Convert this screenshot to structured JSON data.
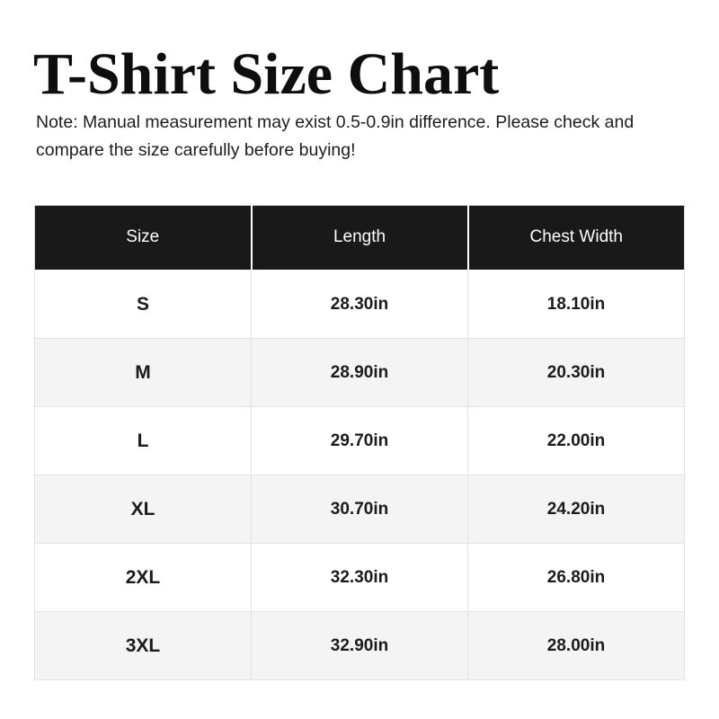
{
  "header": {
    "title": "T-Shirt Size Chart",
    "note": "Note: Manual measurement may exist 0.5-0.9in difference. Please check and compare the size carefully before buying!"
  },
  "table": {
    "columns": [
      "Size",
      "Length",
      "Chest Width"
    ],
    "rows": [
      {
        "size": "S",
        "length": "28.30in",
        "chest_width": "18.10in"
      },
      {
        "size": "M",
        "length": "28.90in",
        "chest_width": "20.30in"
      },
      {
        "size": "L",
        "length": "29.70in",
        "chest_width": "22.00in"
      },
      {
        "size": "XL",
        "length": "30.70in",
        "chest_width": "24.20in"
      },
      {
        "size": "2XL",
        "length": "32.30in",
        "chest_width": "26.80in"
      },
      {
        "size": "3XL",
        "length": "32.90in",
        "chest_width": "28.00in"
      }
    ],
    "colors": {
      "header_bg": "#191919",
      "header_text": "#ffffff",
      "row_bg": "#ffffff",
      "row_alt_bg": "#f4f4f4",
      "border": "#e2e2e2",
      "text": "#1b1b1b"
    }
  },
  "chart_data": {
    "type": "table",
    "title": "T-Shirt Size Chart",
    "note": "Note: Manual measurement may exist 0.5-0.9in difference. Please check and compare the size carefully before buying!",
    "columns": [
      "Size",
      "Length",
      "Chest Width"
    ],
    "rows": [
      [
        "S",
        "28.30in",
        "18.10in"
      ],
      [
        "M",
        "28.90in",
        "20.30in"
      ],
      [
        "L",
        "29.70in",
        "22.00in"
      ],
      [
        "XL",
        "30.70in",
        "24.20in"
      ],
      [
        "2XL",
        "32.30in",
        "26.80in"
      ],
      [
        "3XL",
        "32.90in",
        "28.00in"
      ]
    ],
    "units": "in",
    "layout": {
      "header_style": "black-band",
      "zebra_striping": true,
      "columns_equal_width": true
    }
  }
}
